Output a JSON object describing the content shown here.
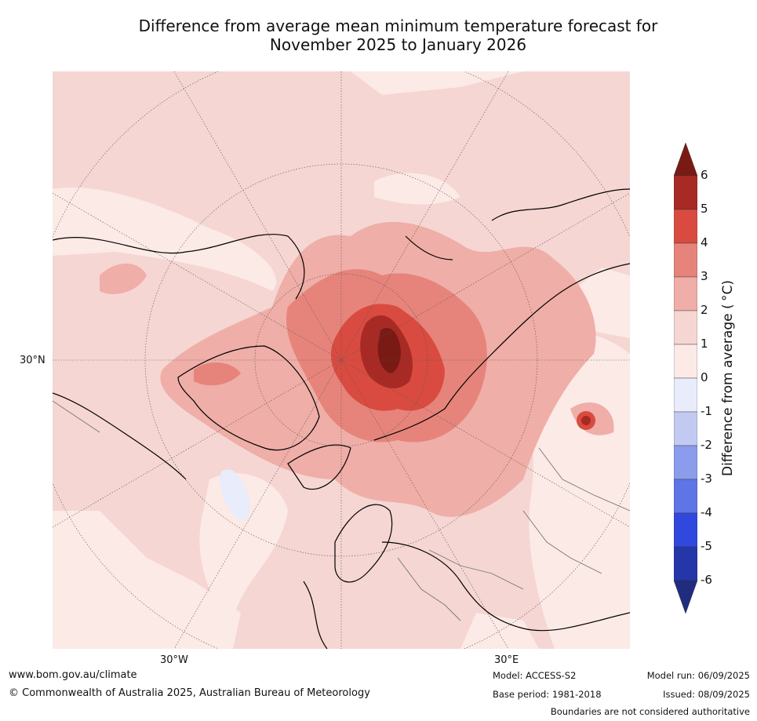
{
  "title": {
    "line1": "Difference from average mean minimum temperature forecast for",
    "line2": "November 2025 to January 2026"
  },
  "map": {
    "lat_labels": [
      "30°N"
    ],
    "lon_labels": [
      "30°W",
      "30°E"
    ]
  },
  "colorbar": {
    "label": "Difference from average ( °C)",
    "ticks": [
      "6",
      "5",
      "4",
      "3",
      "2",
      "1",
      "0",
      "-1",
      "-2",
      "-3",
      "-4",
      "-5",
      "-6"
    ],
    "colors": [
      "#7a1a14",
      "#a82a24",
      "#d94b40",
      "#e6847b",
      "#efaea7",
      "#f5d6d2",
      "#fbeae6",
      "#e8ecfb",
      "#c3caf2",
      "#8b9cec",
      "#5e75e6",
      "#3048de",
      "#2536a8",
      "#1f2c80"
    ]
  },
  "footer": {
    "url": "www.bom.gov.au/climate",
    "copyright": "© Commonwealth of Australia 2025, Australian Bureau of Meteorology",
    "model": "Model: ACCESS-S2",
    "base_period": "Base period: 1981-2018",
    "model_run": "Model run: 06/09/2025",
    "issued": "Issued: 08/09/2025",
    "disclaimer": "Boundaries are not considered authoritative"
  }
}
